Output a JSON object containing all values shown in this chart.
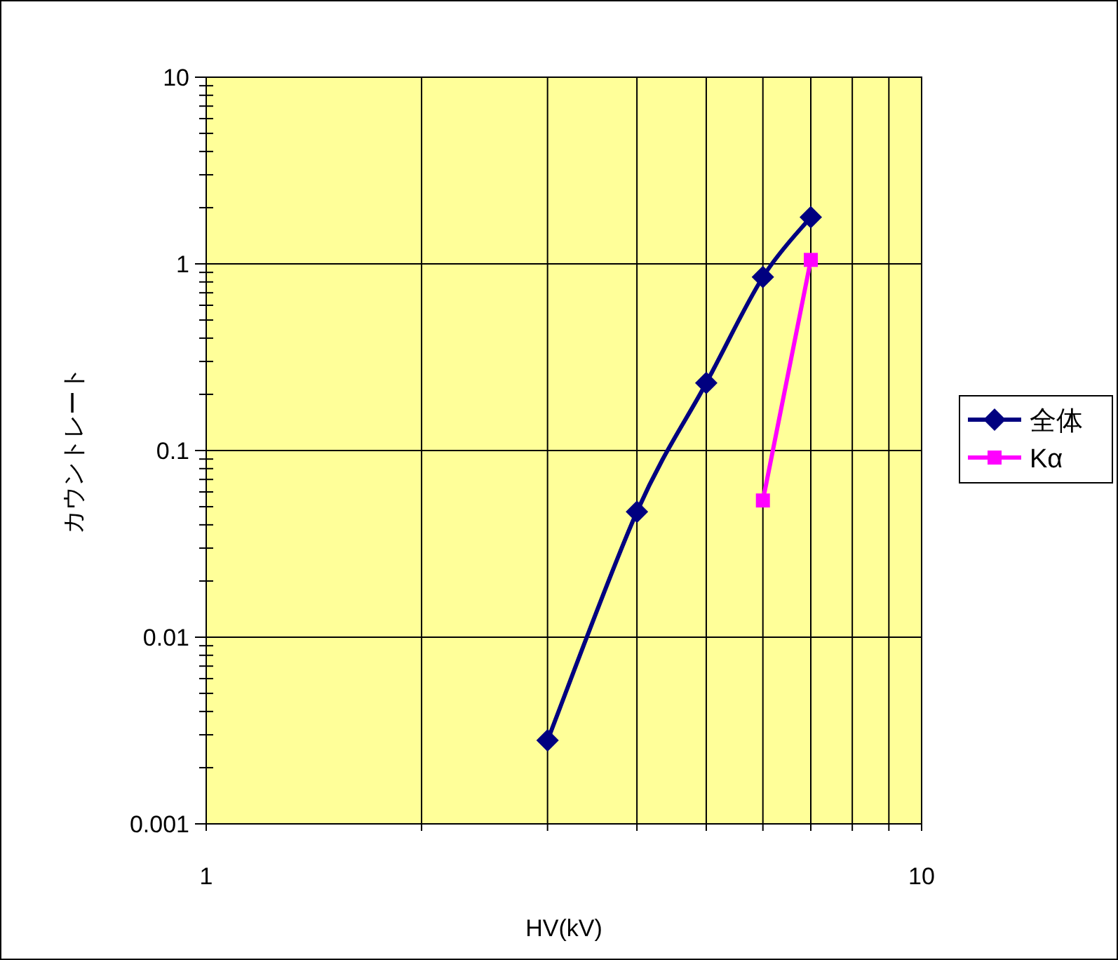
{
  "chart_data": {
    "type": "line",
    "xlabel": "HV(kV)",
    "ylabel": "カウントレート",
    "log": "xy",
    "xlim": [
      1,
      10
    ],
    "ylim": [
      0.001,
      10
    ],
    "xticks": [
      1,
      {
        "value": 2,
        "label": null
      },
      {
        "value": 3,
        "label": null
      },
      {
        "value": 4,
        "label": null
      },
      {
        "value": 5,
        "label": null
      },
      {
        "value": 6,
        "label": null
      },
      {
        "value": 7,
        "label": null
      },
      {
        "value": 8,
        "label": null
      },
      {
        "value": 9,
        "label": null
      },
      10
    ],
    "yticks": [
      0.001,
      0.01,
      0.1,
      1,
      10
    ],
    "grid": true,
    "legend": "right",
    "series": [
      {
        "name": "全体",
        "color": "#000080",
        "marker": "diamond",
        "x": [
          3,
          4,
          5,
          6,
          7
        ],
        "values": [
          0.0028,
          0.047,
          0.23,
          0.85,
          1.78
        ]
      },
      {
        "name": "Kα",
        "color": "#ff00ff",
        "marker": "square",
        "x": [
          6,
          7
        ],
        "values": [
          0.054,
          1.05
        ]
      }
    ]
  }
}
